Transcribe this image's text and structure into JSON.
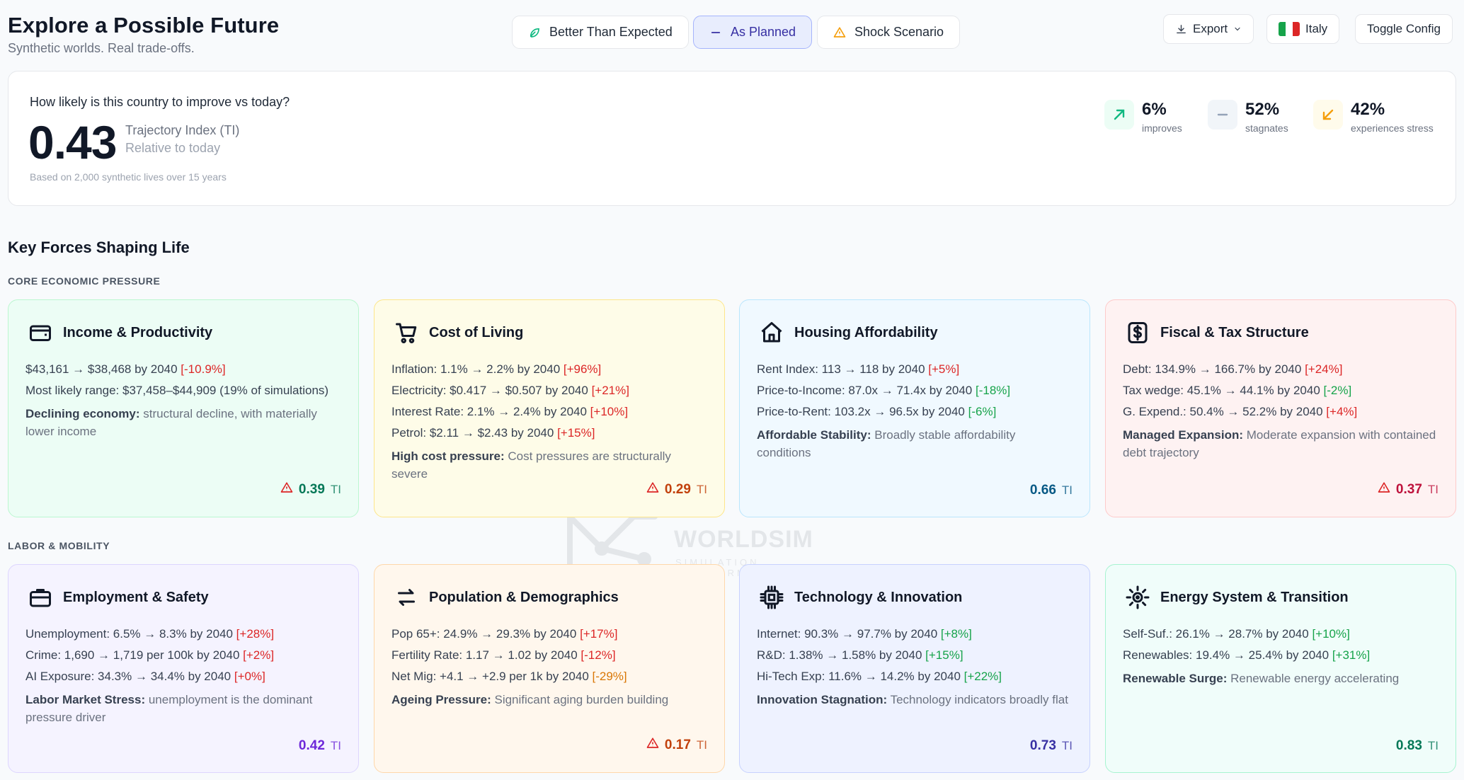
{
  "header": {
    "title": "Explore a Possible Future",
    "subtitle": "Synthetic worlds. Real trade-offs."
  },
  "scenarios": [
    {
      "label": "Better Than Expected",
      "icon": "leaf-icon",
      "color": "#10b981"
    },
    {
      "label": "As Planned",
      "icon": "minus-icon",
      "color": "#3730a3",
      "active": true
    },
    {
      "label": "Shock Scenario",
      "icon": "warning-icon",
      "color": "#f59e0b"
    }
  ],
  "toolbar": {
    "export_label": "Export",
    "country_label": "Italy",
    "toggle_label": "Toggle Config"
  },
  "summary": {
    "question": "How likely is this country to improve vs today?",
    "index_value": "0.43",
    "index_label": "Trajectory Index (TI)",
    "index_sub": "Relative to today",
    "basis": "Based on 2,000 synthetic lives over 15 years",
    "stats": [
      {
        "value": "6%",
        "label": "improves",
        "icon": "arrow-up-right-icon",
        "color": "#10b981"
      },
      {
        "value": "52%",
        "label": "stagnates",
        "icon": "minus-icon",
        "color": "#94a3b8"
      },
      {
        "value": "42%",
        "label": "experiences stress",
        "icon": "arrow-down-left-icon",
        "color": "#f59e0b"
      }
    ]
  },
  "section_title": "Key Forces Shaping Life",
  "groups": [
    {
      "label": "CORE ECONOMIC PRESSURE",
      "cards": [
        {
          "title": "Income & Productivity",
          "icon": "wallet-icon",
          "bg": "#ecfdf5",
          "border": "#bbf7d0",
          "lines": [
            {
              "text": "$43,161 → $38,468 by 2040 ",
              "chg": "[-10.9%]",
              "tone": "neg"
            },
            {
              "text": "Most likely range: $37,458–$44,909 (19% of simulations)",
              "chg": "",
              "tone": ""
            }
          ],
          "note_bold": "Declining economy:",
          "note": " structural decline, with materially lower income",
          "score": "0.39",
          "score_color": "#047857",
          "warn": true
        },
        {
          "title": "Cost of Living",
          "icon": "cart-icon",
          "bg": "#fefce8",
          "border": "#fde68a",
          "lines": [
            {
              "text": "Inflation: 1.1% → 2.2% by 2040 ",
              "chg": "[+96%]",
              "tone": "neg"
            },
            {
              "text": "Electricity: $0.417 → $0.507 by 2040 ",
              "chg": "[+21%]",
              "tone": "neg"
            },
            {
              "text": "Interest Rate: 2.1% → 2.4% by 2040 ",
              "chg": "[+10%]",
              "tone": "neg"
            },
            {
              "text": "Petrol: $2.11 → $2.43 by 2040 ",
              "chg": "[+15%]",
              "tone": "neg"
            }
          ],
          "note_bold": "High cost pressure:",
          "note": " Cost pressures are structurally severe",
          "score": "0.29",
          "score_color": "#c2410c",
          "warn": true
        },
        {
          "title": "Housing Affordability",
          "icon": "home-icon",
          "bg": "#f0f9ff",
          "border": "#bae6fd",
          "lines": [
            {
              "text": "Rent Index: 113 → 118 by 2040 ",
              "chg": "[+5%]",
              "tone": "neg"
            },
            {
              "text": "Price-to-Income: 87.0x → 71.4x by 2040 ",
              "chg": "[-18%]",
              "tone": "pos"
            },
            {
              "text": "Price-to-Rent: 103.2x → 96.5x by 2040 ",
              "chg": "[-6%]",
              "tone": "pos"
            }
          ],
          "note_bold": "Affordable Stability:",
          "note": " Broadly stable affordability conditions",
          "score": "0.66",
          "score_color": "#075985",
          "warn": false
        },
        {
          "title": "Fiscal & Tax Structure",
          "icon": "dollar-icon",
          "bg": "#fef2f2",
          "border": "#fecaca",
          "lines": [
            {
              "text": "Debt: 134.9% → 166.7% by 2040 ",
              "chg": "[+24%]",
              "tone": "neg"
            },
            {
              "text": "Tax wedge: 45.1% → 44.1% by 2040 ",
              "chg": "[-2%]",
              "tone": "pos"
            },
            {
              "text": "G. Expend.: 50.4% → 52.2% by 2040 ",
              "chg": "[+4%]",
              "tone": "neg"
            }
          ],
          "note_bold": "Managed Expansion:",
          "note": " Moderate expansion with contained debt trajectory",
          "score": "0.37",
          "score_color": "#be123c",
          "warn": true
        }
      ]
    },
    {
      "label": "LABOR & MOBILITY",
      "cards": [
        {
          "title": "Employment & Safety",
          "icon": "briefcase-icon",
          "bg": "#f5f3ff",
          "border": "#ddd6fe",
          "lines": [
            {
              "text": "Unemployment: 6.5% → 8.3% by 2040 ",
              "chg": "[+28%]",
              "tone": "neg"
            },
            {
              "text": "Crime: 1,690 → 1,719 per 100k by 2040 ",
              "chg": "[+2%]",
              "tone": "neg"
            },
            {
              "text": "AI Exposure: 34.3% → 34.4% by 2040 ",
              "chg": "[+0%]",
              "tone": "neg"
            }
          ],
          "note_bold": "Labor Market Stress:",
          "note": " unemployment is the dominant pressure driver",
          "score": "0.42",
          "score_color": "#6d28d9",
          "warn": false
        },
        {
          "title": "Population & Demographics",
          "icon": "arrows-exchange-icon",
          "bg": "#fff7ed",
          "border": "#fed7aa",
          "lines": [
            {
              "text": "Pop 65+: 24.9% → 29.3% by 2040 ",
              "chg": "[+17%]",
              "tone": "neg"
            },
            {
              "text": "Fertility Rate: 1.17 → 1.02 by 2040 ",
              "chg": "[-12%]",
              "tone": "neg"
            },
            {
              "text": "Net Mig: +4.1 → +2.9 per 1k by 2040 ",
              "chg": "[-29%]",
              "tone": "amb"
            }
          ],
          "note_bold": "Ageing Pressure:",
          "note": " Significant aging burden building",
          "score": "0.17",
          "score_color": "#c2410c",
          "warn": true
        },
        {
          "title": "Technology & Innovation",
          "icon": "chip-icon",
          "bg": "#eef2ff",
          "border": "#c7d2fe",
          "lines": [
            {
              "text": "Internet: 90.3% → 97.7% by 2040 ",
              "chg": "[+8%]",
              "tone": "pos"
            },
            {
              "text": "R&D: 1.38% → 1.58% by 2040 ",
              "chg": "[+15%]",
              "tone": "pos"
            },
            {
              "text": "Hi-Tech Exp: 11.6% → 14.2% by 2040 ",
              "chg": "[+22%]",
              "tone": "pos"
            }
          ],
          "note_bold": "Innovation Stagnation:",
          "note": " Technology indicators broadly flat",
          "score": "0.73",
          "score_color": "#3730a3",
          "warn": false
        },
        {
          "title": "Energy System & Transition",
          "icon": "sun-icon",
          "bg": "#f0fdfa",
          "border": "#a7f3d0",
          "lines": [
            {
              "text": "Self-Suf.: 26.1% → 28.7% by 2040 ",
              "chg": "[+10%]",
              "tone": "pos"
            },
            {
              "text": "Renewables: 19.4% → 25.4% by 2040 ",
              "chg": "[+31%]",
              "tone": "pos"
            }
          ],
          "note_bold": "Renewable Surge:",
          "note": " Renewable energy accelerating",
          "score": "0.83",
          "score_color": "#047857",
          "warn": false
        }
      ]
    }
  ],
  "score_unit": "TI",
  "watermark": {
    "title": "WORLDSIM",
    "subtitle": "SIMULATION PLATFORM"
  }
}
